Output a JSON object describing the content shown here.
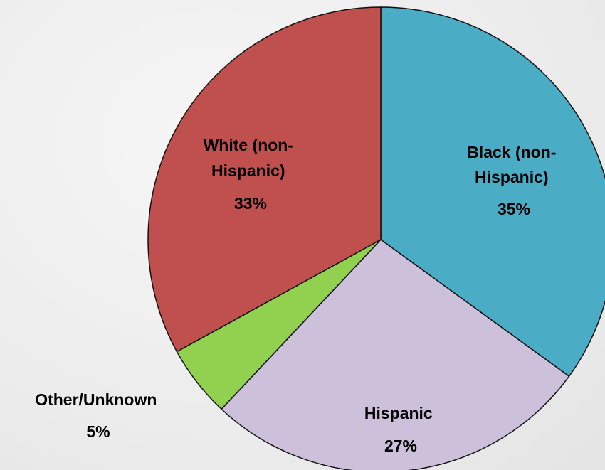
{
  "chart_data": {
    "type": "pie",
    "start_angle_deg": 0,
    "direction": "clockwise",
    "slices": [
      {
        "label_lines": [
          "Black (non-",
          "Hispanic)"
        ],
        "percent_label": "35%",
        "value": 35,
        "color": "#4BACC6"
      },
      {
        "label_lines": [
          "Hispanic"
        ],
        "percent_label": "27%",
        "value": 27,
        "color": "#CCC0DA"
      },
      {
        "label_lines": [
          "Other/Unknown"
        ],
        "percent_label": "5%",
        "value": 5,
        "color": "#92D050"
      },
      {
        "label_lines": [
          "White (non-",
          "Hispanic)"
        ],
        "percent_label": "33%",
        "value": 33,
        "color": "#C0504D"
      }
    ]
  }
}
